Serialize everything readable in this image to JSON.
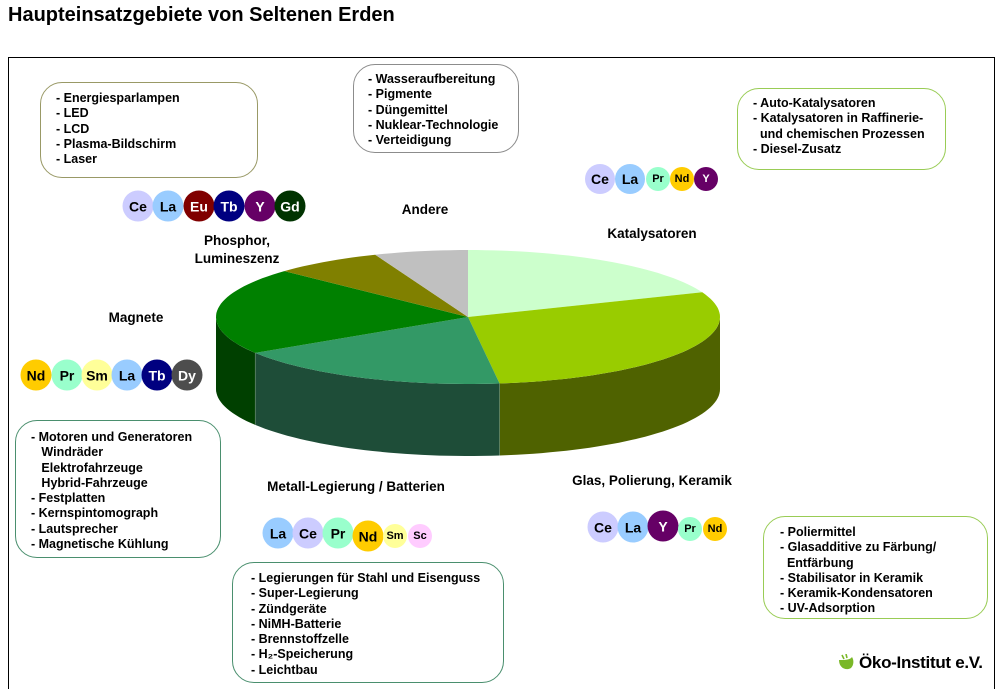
{
  "title": "Haupteinsatzgebiete von Seltenen Erden",
  "logo_text": "Öko-Institut e.V.",
  "element_colors": {
    "Ce": "#ccccff",
    "La": "#99ccff",
    "Eu": "#800000",
    "Tb": "#000080",
    "Y": "#660066",
    "Gd": "#003300",
    "Pr": "#99ffcc",
    "Nd": "#ffcc00",
    "Sm": "#ffff99",
    "Dy": "#4d4d4d",
    "Sc": "#ffccff"
  },
  "groups": [
    {
      "id": "phosphor",
      "label": "Phosphor,\nLumineszenz",
      "elements": [
        "Ce",
        "La",
        "Eu",
        "Tb",
        "Y",
        "Gd"
      ],
      "items": [
        "- Energiesparlampen",
        "- LED",
        "- LCD",
        "- Plasma-Bildschirm",
        "- Laser"
      ]
    },
    {
      "id": "andere",
      "label": "Andere",
      "elements": [],
      "items": [
        "- Wasseraufbereitung",
        "- Pigmente",
        "- Düngemittel",
        "- Nuklear-Technologie",
        "- Verteidigung"
      ]
    },
    {
      "id": "kat",
      "label": "Katalysatoren",
      "elements": [
        "Ce",
        "La",
        "Pr",
        "Nd",
        "Y"
      ],
      "items": [
        "- Auto-Katalysatoren",
        "- Katalysatoren in Raffinerie-",
        "  und chemischen Prozessen",
        "- Diesel-Zusatz"
      ]
    },
    {
      "id": "magnete",
      "label": "Magnete",
      "elements": [
        "Nd",
        "Pr",
        "Sm",
        "La",
        "Tb",
        "Dy"
      ],
      "items": [
        "- Motoren und Generatoren",
        "   Windräder",
        "   Elektrofahrzeuge",
        "   Hybrid-Fahrzeuge",
        "- Festplatten",
        "- Kernspintomograph",
        "- Lautsprecher",
        "- Magnetische Kühlung"
      ]
    },
    {
      "id": "metall",
      "label": "Metall-Legierung / Batterien",
      "elements": [
        "La",
        "Ce",
        "Pr",
        "Nd",
        "Sm",
        "Sc"
      ],
      "items": [
        "- Legierungen für Stahl und Eisenguss",
        "- Super-Legierung",
        "- Zündgeräte",
        "- NiMH-Batterie",
        "- Brennstoffzelle",
        "- H₂-Speicherung",
        "- Leichtbau"
      ]
    },
    {
      "id": "glas",
      "label": "Glas, Polierung, Keramik",
      "elements": [
        "Ce",
        "La",
        "Y",
        "Pr",
        "Nd"
      ],
      "items": [
        "- Poliermittel",
        "- Glasadditive zu Färbung/",
        "  Entfärbung",
        "- Stabilisator in Keramik",
        "- Keramik-Kondensatoren",
        "- UV-Adsorption"
      ]
    }
  ],
  "chart_data": {
    "type": "pie",
    "style": "3d",
    "title": "Haupteinsatzgebiete von Seltenen Erden",
    "start": "top, clockwise",
    "categories": [
      "Katalysatoren",
      "Glas, Polierung, Keramik",
      "Metall-Legierung / Batterien",
      "Magnete",
      "Phosphor, Lumineszenz",
      "Andere"
    ],
    "values": [
      19,
      29,
      18,
      21,
      7,
      6
    ],
    "colors": [
      "#ccffcc",
      "#99cc00",
      "#339966",
      "#008000",
      "#808000",
      "#c0c0c0"
    ],
    "side_colors": [
      "#99bb99",
      "#4f6200",
      "#1e4d38",
      "#004000",
      "#505000",
      "#888888"
    ],
    "legend": "none (labels placed around chart)"
  }
}
